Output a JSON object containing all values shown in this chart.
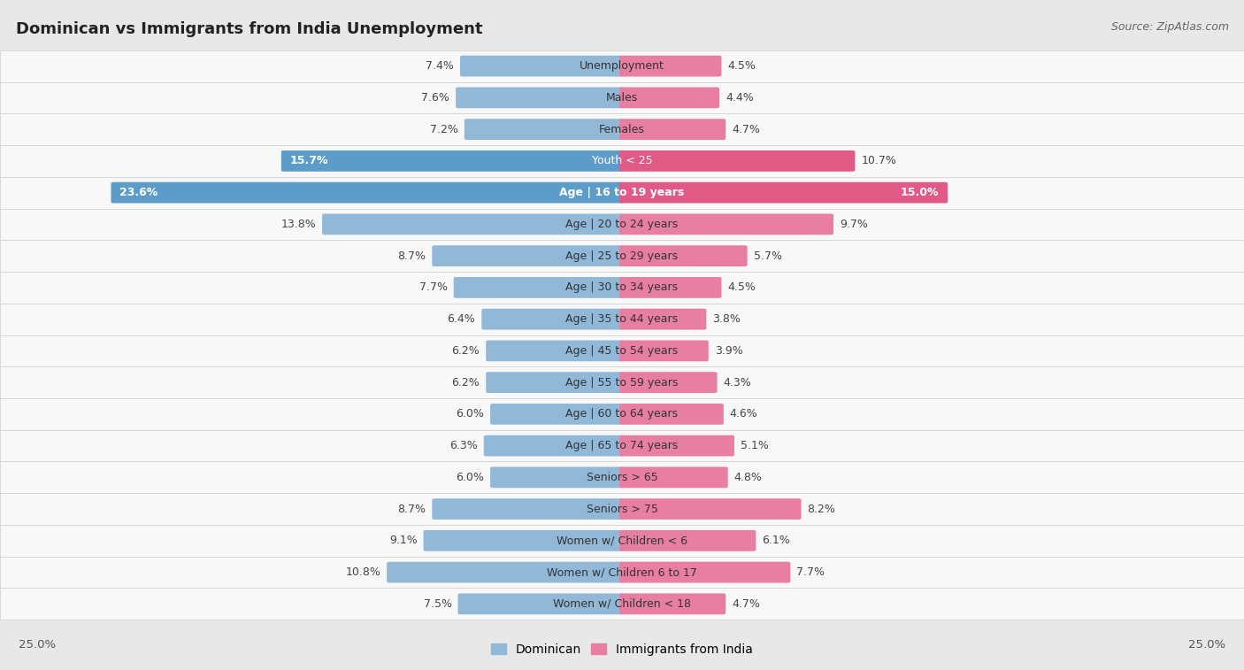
{
  "title": "Dominican vs Immigrants from India Unemployment",
  "source": "Source: ZipAtlas.com",
  "categories": [
    "Unemployment",
    "Males",
    "Females",
    "Youth < 25",
    "Age | 16 to 19 years",
    "Age | 20 to 24 years",
    "Age | 25 to 29 years",
    "Age | 30 to 34 years",
    "Age | 35 to 44 years",
    "Age | 45 to 54 years",
    "Age | 55 to 59 years",
    "Age | 60 to 64 years",
    "Age | 65 to 74 years",
    "Seniors > 65",
    "Seniors > 75",
    "Women w/ Children < 6",
    "Women w/ Children 6 to 17",
    "Women w/ Children < 18"
  ],
  "dominican": [
    7.4,
    7.6,
    7.2,
    15.7,
    23.6,
    13.8,
    8.7,
    7.7,
    6.4,
    6.2,
    6.2,
    6.0,
    6.3,
    6.0,
    8.7,
    9.1,
    10.8,
    7.5
  ],
  "india": [
    4.5,
    4.4,
    4.7,
    10.7,
    15.0,
    9.7,
    5.7,
    4.5,
    3.8,
    3.9,
    4.3,
    4.6,
    5.1,
    4.8,
    8.2,
    6.1,
    7.7,
    4.7
  ],
  "dominican_color": "#92b8d8",
  "india_color": "#e87ea1",
  "dominican_color_strong": "#5b9dc8",
  "india_color_strong": "#e05a85",
  "bg_color": "#e8e8e8",
  "row_bg_color": "#f5f5f5",
  "row_alt_color": "#ebebeb",
  "axis_limit": 25.0,
  "label_fontsize": 9.0,
  "category_fontsize": 9.0,
  "title_fontsize": 13,
  "source_fontsize": 9,
  "legend_fontsize": 10
}
